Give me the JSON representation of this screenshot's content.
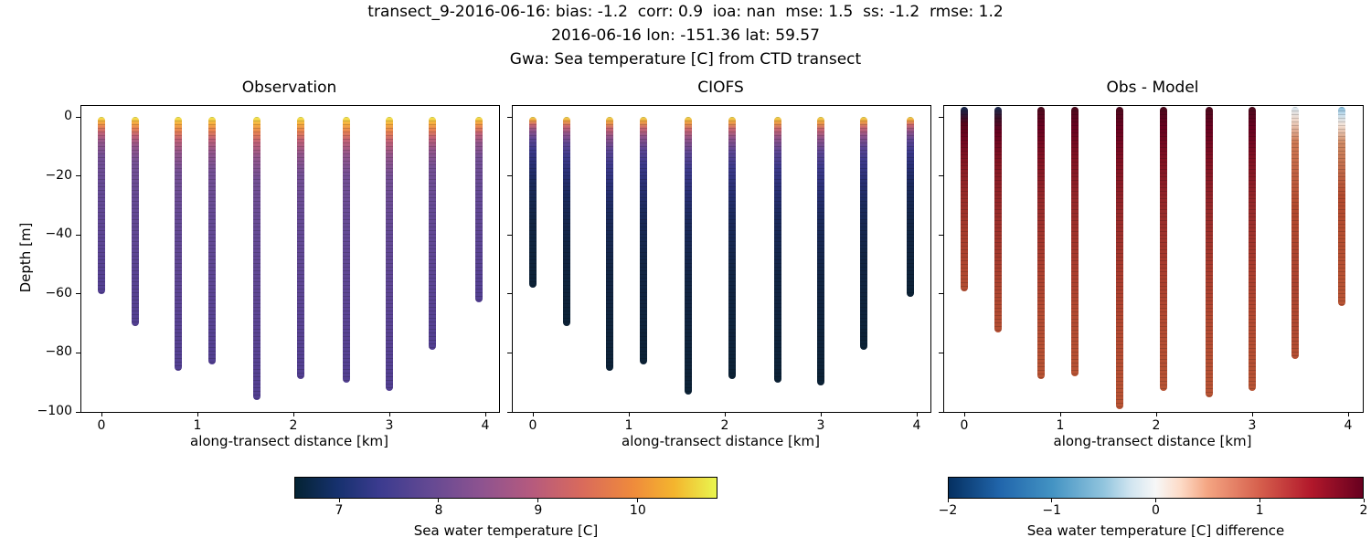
{
  "header": {
    "line1": "transect_9-2016-06-16: bias: -1.2  corr: 0.9  ioa: nan  mse: 1.5  ss: -1.2  rmse: 1.2",
    "line2": "2016-06-16 lon: -151.36 lat: 59.57",
    "line3": "Gwa: Sea temperature [C] from CTD transect"
  },
  "chart_data": {
    "type": "scatter",
    "description": "Three-panel CTD transect depth profiles colored by sea water temperature",
    "panels": [
      {
        "title": "Observation",
        "xlabel": "along-transect distance [km]",
        "ylabel": "Depth [m]",
        "xlim": [
          -0.21,
          4.22
        ],
        "ylim": [
          -100,
          4
        ],
        "show_ytick_labels": true,
        "y_top": 0,
        "xticks": [
          {
            "v": 0,
            "label": "0"
          },
          {
            "v": 1,
            "label": "1"
          },
          {
            "v": 2,
            "label": "2"
          },
          {
            "v": 3,
            "label": "3"
          },
          {
            "v": 4,
            "label": "4"
          }
        ],
        "yticks": [
          {
            "v": 0,
            "label": "0"
          },
          {
            "v": -20,
            "label": "−20"
          },
          {
            "v": -40,
            "label": "−40"
          },
          {
            "v": -60,
            "label": "−60"
          },
          {
            "v": -80,
            "label": "−80"
          },
          {
            "v": -100,
            "label": "−100"
          }
        ],
        "default_stops": [
          [
            "#f1ec52",
            0
          ],
          [
            "#f6b13e",
            2.5
          ],
          [
            "#e88152",
            5.5
          ],
          [
            "#c06177",
            9
          ],
          [
            "#94568b",
            14
          ],
          [
            "#745095",
            22
          ],
          [
            "#654a95",
            40
          ],
          [
            "#5c4594",
            70
          ],
          [
            "#523f91",
            100
          ]
        ],
        "casts": [
          {
            "x": 0.0,
            "depth": -60
          },
          {
            "x": 0.35,
            "depth": -71
          },
          {
            "x": 0.8,
            "depth": -86
          },
          {
            "x": 1.15,
            "depth": -84
          },
          {
            "x": 1.62,
            "depth": -96
          },
          {
            "x": 2.08,
            "depth": -89
          },
          {
            "x": 2.55,
            "depth": -90
          },
          {
            "x": 3.0,
            "depth": -93
          },
          {
            "x": 3.45,
            "depth": -79
          },
          {
            "x": 3.93,
            "depth": -63
          }
        ]
      },
      {
        "title": "CIOFS",
        "xlabel": "along-transect distance [km]",
        "ylabel": "Depth [m]",
        "xlim": [
          -0.21,
          4.22
        ],
        "ylim": [
          -100,
          4
        ],
        "show_ytick_labels": false,
        "y_top": 0,
        "xticks": [
          {
            "v": 0,
            "label": "0"
          },
          {
            "v": 1,
            "label": "1"
          },
          {
            "v": 2,
            "label": "2"
          },
          {
            "v": 3,
            "label": "3"
          },
          {
            "v": 4,
            "label": "4"
          }
        ],
        "yticks": [
          {
            "v": 0,
            "label": "0"
          },
          {
            "v": -20,
            "label": "−20"
          },
          {
            "v": -40,
            "label": "−40"
          },
          {
            "v": -60,
            "label": "−60"
          },
          {
            "v": -80,
            "label": "−80"
          },
          {
            "v": -100,
            "label": "−100"
          }
        ],
        "default_stops": [
          [
            "#efd94b",
            0
          ],
          [
            "#ee9f43",
            2
          ],
          [
            "#ca6670",
            4.5
          ],
          [
            "#8f5389",
            8
          ],
          [
            "#5d4693",
            13
          ],
          [
            "#3d3a8b",
            19
          ],
          [
            "#2a3076",
            27
          ],
          [
            "#1b2a5c",
            38
          ],
          [
            "#122544",
            60
          ],
          [
            "#0c2236",
            100
          ]
        ],
        "casts": [
          {
            "x": 0.0,
            "depth": -58
          },
          {
            "x": 0.35,
            "depth": -71
          },
          {
            "x": 0.8,
            "depth": -86
          },
          {
            "x": 1.15,
            "depth": -84
          },
          {
            "x": 1.62,
            "depth": -94
          },
          {
            "x": 2.08,
            "depth": -89
          },
          {
            "x": 2.55,
            "depth": -90
          },
          {
            "x": 3.0,
            "depth": -91
          },
          {
            "x": 3.45,
            "depth": -79
          },
          {
            "x": 3.93,
            "depth": -61
          }
        ]
      },
      {
        "title": "Obs - Model",
        "xlabel": "along-transect distance [km]",
        "ylabel": "Depth [m]",
        "xlim": [
          -0.21,
          4.22
        ],
        "ylim": [
          -100,
          4
        ],
        "show_ytick_labels": false,
        "y_top": 3.4,
        "xticks": [
          {
            "v": 0,
            "label": "0"
          },
          {
            "v": 1,
            "label": "1"
          },
          {
            "v": 2,
            "label": "2"
          },
          {
            "v": 3,
            "label": "3"
          },
          {
            "v": 4,
            "label": "4"
          }
        ],
        "yticks": [
          {
            "v": 0,
            "label": "0"
          },
          {
            "v": -20,
            "label": "−20"
          },
          {
            "v": -40,
            "label": "−40"
          },
          {
            "v": -60,
            "label": "−60"
          },
          {
            "v": -80,
            "label": "−80"
          },
          {
            "v": -100,
            "label": "−100"
          }
        ],
        "default_stops": [
          [
            "#4a0a1c",
            0
          ],
          [
            "#67001f",
            7
          ],
          [
            "#7f1022",
            18
          ],
          [
            "#96292a",
            35
          ],
          [
            "#a83b2d",
            55
          ],
          [
            "#b34a31",
            75
          ],
          [
            "#b85434",
            100
          ]
        ],
        "casts": [
          {
            "x": 0.0,
            "depth": -59,
            "stops": [
              [
                "#16294e",
                0
              ],
              [
                "#2b1735",
                4
              ],
              [
                "#560318",
                9
              ],
              [
                "#6d041f",
                16
              ],
              [
                "#8c1f26",
                35
              ],
              [
                "#a53a2c",
                65
              ],
              [
                "#b54f33",
                100
              ]
            ]
          },
          {
            "x": 0.35,
            "depth": -73,
            "stops": [
              [
                "#1b2d52",
                0
              ],
              [
                "#3d1027",
                5
              ],
              [
                "#67001f",
                11
              ],
              [
                "#841623",
                25
              ],
              [
                "#9c2f2b",
                50
              ],
              [
                "#ad442f",
                80
              ],
              [
                "#b54f33",
                100
              ]
            ]
          },
          {
            "x": 0.8,
            "depth": -89
          },
          {
            "x": 1.15,
            "depth": -88
          },
          {
            "x": 1.62,
            "depth": -99
          },
          {
            "x": 2.08,
            "depth": -93
          },
          {
            "x": 2.55,
            "depth": -95
          },
          {
            "x": 3.0,
            "depth": -93
          },
          {
            "x": 3.45,
            "depth": -82,
            "stops": [
              [
                "#d8e7f0",
                0
              ],
              [
                "#efd9cc",
                5
              ],
              [
                "#cf7a55",
                14
              ],
              [
                "#b34a2e",
                40
              ],
              [
                "#ad442f",
                70
              ],
              [
                "#b54f33",
                100
              ]
            ]
          },
          {
            "x": 3.93,
            "depth": -64,
            "stops": [
              [
                "#7fb8d9",
                0
              ],
              [
                "#c9e0ed",
                4
              ],
              [
                "#f3e2d7",
                9
              ],
              [
                "#d08a64",
                18
              ],
              [
                "#b34a2e",
                45
              ],
              [
                "#b85434",
                100
              ]
            ]
          }
        ]
      }
    ],
    "colorbars": [
      {
        "label": "Sea water temperature [C]",
        "vmin": 6.55,
        "vmax": 10.8,
        "ticks": [
          {
            "v": 7,
            "label": "7"
          },
          {
            "v": 8,
            "label": "8"
          },
          {
            "v": 9,
            "label": "9"
          },
          {
            "v": 10,
            "label": "10"
          }
        ],
        "stops": [
          [
            "#042333",
            0
          ],
          [
            "#16316e",
            10
          ],
          [
            "#3b3b8f",
            20
          ],
          [
            "#644993",
            32
          ],
          [
            "#8d5390",
            44
          ],
          [
            "#b55a7e",
            56
          ],
          [
            "#d96a5c",
            68
          ],
          [
            "#ef8a3c",
            80
          ],
          [
            "#f4b52e",
            90
          ],
          [
            "#e9f64f",
            100
          ]
        ]
      },
      {
        "label": "Sea water temperature [C] difference",
        "vmin": -2,
        "vmax": 2,
        "ticks": [
          {
            "v": -2,
            "label": "−2"
          },
          {
            "v": -1,
            "label": "−1"
          },
          {
            "v": 0,
            "label": "0"
          },
          {
            "v": 1,
            "label": "1"
          },
          {
            "v": 2,
            "label": "2"
          }
        ],
        "stops": [
          [
            "#053061",
            0
          ],
          [
            "#2166ac",
            12.5
          ],
          [
            "#4393c3",
            25
          ],
          [
            "#92c5de",
            37.5
          ],
          [
            "#d1e5f0",
            44
          ],
          [
            "#f7f7f7",
            50
          ],
          [
            "#fddbc7",
            56
          ],
          [
            "#f4a582",
            62.5
          ],
          [
            "#d6604d",
            75
          ],
          [
            "#b2182b",
            87.5
          ],
          [
            "#67001f",
            100
          ]
        ]
      }
    ]
  }
}
